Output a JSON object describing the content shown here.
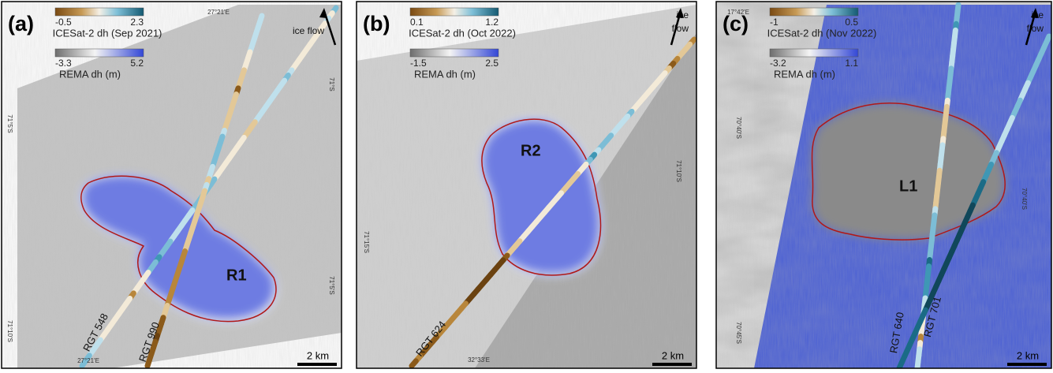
{
  "panels": [
    {
      "label": "(a)",
      "colorbars": [
        {
          "ticks": [
            -0.5,
            2.3
          ],
          "caption": "ICESat-2 dh (Sep 2021)"
        },
        {
          "ticks": [
            -3.3,
            5.2
          ],
          "caption": "REMA dh (m)"
        }
      ],
      "flow": [
        "ice flow"
      ],
      "lake": "R1",
      "tracks": [
        "RGT 548",
        "RGT 990"
      ],
      "scale": "2 km",
      "coords": [
        "27°21'E",
        "71°S",
        "71°5'S",
        "71°5'S",
        "71°10'S",
        "27°21'E"
      ]
    },
    {
      "label": "(b)",
      "colorbars": [
        {
          "ticks": [
            0.1,
            1.2
          ],
          "caption": "ICESat-2 dh (Oct 2022)"
        },
        {
          "ticks": [
            -1.5,
            2.5
          ],
          "caption": "REMA dh (m)"
        }
      ],
      "flow": [
        "ice",
        "flow"
      ],
      "lake": "R2",
      "tracks": [
        "RGT 624"
      ],
      "scale": "2 km",
      "coords": [
        "71°10'S",
        "71°15'S",
        "32°33'E"
      ]
    },
    {
      "label": "(c)",
      "colorbars": [
        {
          "ticks": [
            -1,
            0.5
          ],
          "caption": "ICESat-2 dh (Nov 2022)"
        },
        {
          "ticks": [
            -3.2,
            1.1
          ],
          "caption": "REMA dh (m)"
        }
      ],
      "flow": [
        "ice",
        "flow"
      ],
      "lake": "L1",
      "tracks": [
        "RGT 640",
        "RGT 701"
      ],
      "scale": "2 km",
      "coords": [
        "17°42'E",
        "70°40'S",
        "70°40'S",
        "70°45'S"
      ]
    }
  ]
}
